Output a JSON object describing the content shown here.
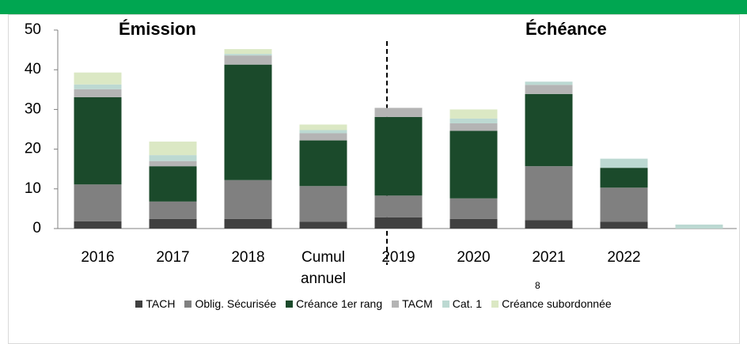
{
  "chart_data": {
    "type": "stacked-bar",
    "annotations": [
      "Émission",
      "Échéance",
      "8"
    ],
    "categories": [
      "2016",
      "2017",
      "2018",
      "Cumul annuel",
      "2019",
      "2020",
      "2021",
      "2022",
      null
    ],
    "series": [
      {
        "name": "TACH",
        "color": "#404040",
        "values": [
          1.8,
          2.4,
          2.4,
          1.7,
          2.8,
          2.4,
          2.1,
          1.7,
          0
        ]
      },
      {
        "name": "Oblig. Sécurisée",
        "color": "#808080",
        "values": [
          9.3,
          4.4,
          9.8,
          9,
          5.5,
          5.2,
          13.6,
          8.6,
          0
        ]
      },
      {
        "name": "Créance 1er rang",
        "color": "#1b4a2b",
        "values": [
          22,
          8.9,
          29.1,
          11.5,
          19.8,
          17,
          18.2,
          5,
          0
        ]
      },
      {
        "name": "TACM",
        "color": "#b4b4b4",
        "values": [
          2,
          1.3,
          2.3,
          1.8,
          2.3,
          1.9,
          2.3,
          0,
          0
        ]
      },
      {
        "name": "Cat. 1",
        "color": "#bcd9d2",
        "values": [
          1.2,
          1.5,
          0.4,
          0.8,
          0,
          1.2,
          0.8,
          2.3,
          1
        ]
      },
      {
        "name": "Créance subordonnée",
        "color": "#dbe8c4",
        "values": [
          3,
          3.4,
          1.2,
          1.4,
          0,
          2.3,
          0,
          0,
          0
        ]
      }
    ],
    "ylim": [
      0,
      50
    ],
    "yticks": [
      0,
      10,
      20,
      30,
      40,
      50
    ]
  }
}
